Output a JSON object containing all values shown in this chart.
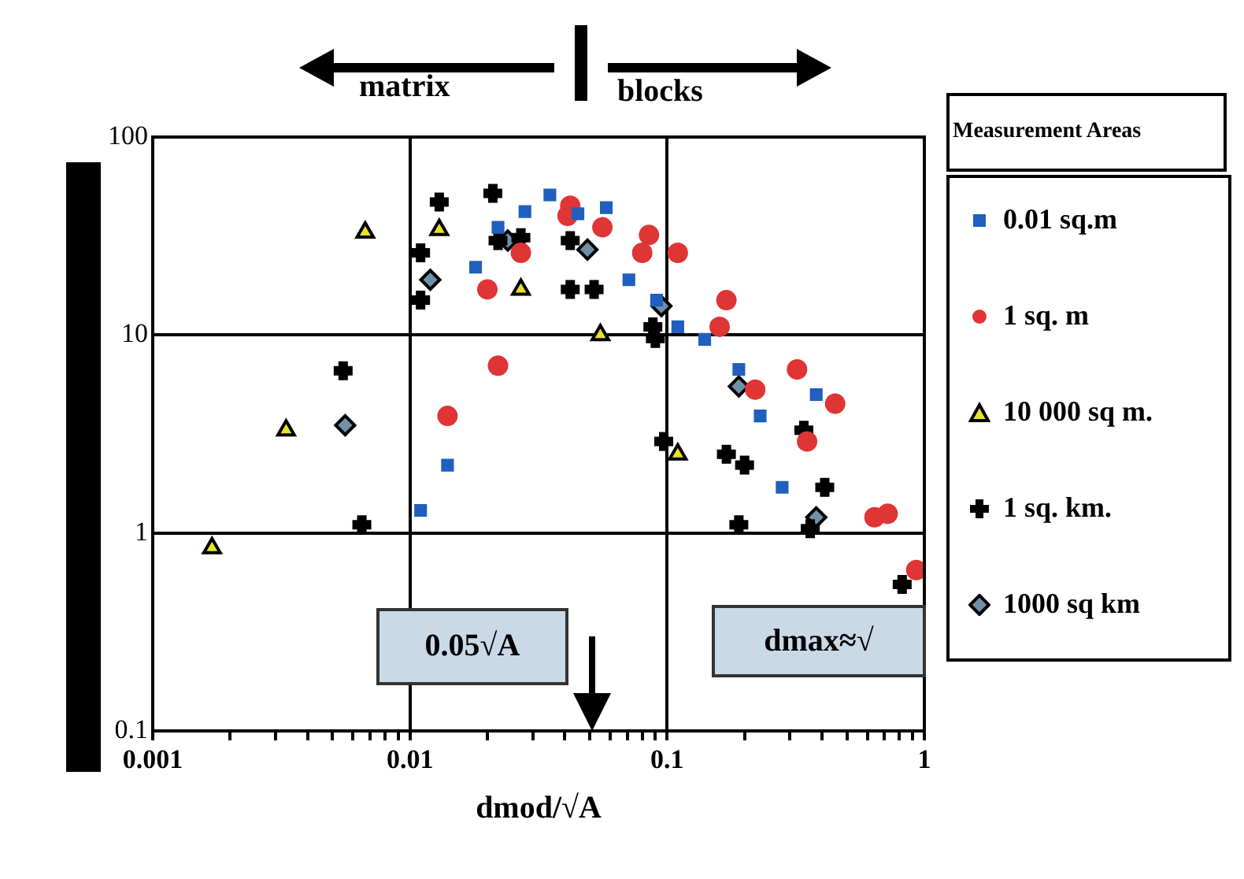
{
  "chart_data": {
    "type": "scatter",
    "xlabel": "dmod/√A",
    "legend_title": "Measurement Areas",
    "legend": "right",
    "log": "xy",
    "grid": true,
    "xlim": [
      0.001,
      1
    ],
    "ylim": [
      0.1,
      100
    ],
    "xticks": [
      0.001,
      {
        "value": 0.002,
        "label": null
      },
      {
        "value": 0.003,
        "label": null
      },
      {
        "value": 0.004,
        "label": null
      },
      {
        "value": 0.005,
        "label": null
      },
      {
        "value": 0.006,
        "label": null
      },
      {
        "value": 0.007,
        "label": null
      },
      {
        "value": 0.008,
        "label": null
      },
      {
        "value": 0.009,
        "label": null
      },
      0.01,
      {
        "value": 0.02,
        "label": null
      },
      {
        "value": 0.03,
        "label": null
      },
      {
        "value": 0.04,
        "label": null
      },
      {
        "value": 0.05,
        "label": null
      },
      {
        "value": 0.06,
        "label": null
      },
      {
        "value": 0.07,
        "label": null
      },
      {
        "value": 0.08,
        "label": null
      },
      {
        "value": 0.09,
        "label": null
      },
      0.1,
      {
        "value": 0.2,
        "label": null
      },
      {
        "value": 0.3,
        "label": null
      },
      {
        "value": 0.4,
        "label": null
      },
      {
        "value": 0.5,
        "label": null
      },
      {
        "value": 0.6,
        "label": null
      },
      {
        "value": 0.7,
        "label": null
      },
      {
        "value": 0.8,
        "label": null
      },
      {
        "value": 0.9,
        "label": null
      },
      1
    ],
    "yticks": [
      0.1,
      1,
      10,
      100
    ],
    "annotations": [
      "matrix",
      "blocks",
      "0.05√A",
      "dmax≈√"
    ],
    "series": [
      {
        "name": "0.01 sq.m",
        "color": "#1f5fc0",
        "marker": "square",
        "x": [
          0.035,
          0.028,
          0.022,
          0.018,
          0.014,
          0.011,
          0.058,
          0.045,
          0.071,
          0.091,
          0.11,
          0.14,
          0.19,
          0.23,
          0.38,
          0.28
        ],
        "values": [
          51,
          42,
          35,
          22,
          2.2,
          1.3,
          44,
          41,
          19,
          15,
          11,
          9.5,
          6.7,
          3.9,
          5,
          1.7
        ]
      },
      {
        "name": "1 sq. m",
        "color": "#e03535",
        "marker": "circle",
        "x": [
          0.042,
          0.041,
          0.056,
          0.027,
          0.02,
          0.022,
          0.014,
          0.085,
          0.08,
          0.11,
          0.17,
          0.16,
          0.32,
          0.22,
          0.45,
          0.35,
          0.64,
          0.72,
          0.93
        ],
        "values": [
          45,
          40,
          35,
          26,
          17,
          7,
          3.9,
          32,
          26,
          26,
          15,
          11,
          6.7,
          5.3,
          4.5,
          2.9,
          1.2,
          1.25,
          0.65
        ]
      },
      {
        "name": "10 000 sq m.",
        "color": "#e6e22a",
        "marker": "triangle",
        "x": [
          0.0067,
          0.013,
          0.027,
          0.055,
          0.0033,
          0.0017,
          0.11
        ],
        "values": [
          33,
          34,
          17,
          10,
          3.3,
          0.84,
          2.5
        ]
      },
      {
        "name": "1 sq. km.",
        "color": "#000000",
        "marker": "cross",
        "x": [
          0.021,
          0.013,
          0.011,
          0.011,
          0.022,
          0.027,
          0.042,
          0.042,
          0.052,
          0.088,
          0.09,
          0.0055,
          0.0065,
          0.097,
          0.17,
          0.2,
          0.34,
          0.41,
          0.19,
          0.36,
          0.82
        ],
        "values": [
          52,
          47,
          26,
          15,
          30,
          31,
          30,
          17,
          17,
          11,
          9.6,
          6.6,
          1.1,
          2.9,
          2.5,
          2.2,
          3.3,
          1.7,
          1.1,
          1.05,
          0.55
        ]
      },
      {
        "name": "1000 sq km",
        "color": "#7090a8",
        "marker": "diamond",
        "x": [
          0.012,
          0.0056,
          0.024,
          0.049,
          0.095,
          0.19,
          0.38
        ],
        "values": [
          19,
          3.5,
          30,
          27,
          14,
          5.5,
          1.2
        ]
      }
    ]
  }
}
